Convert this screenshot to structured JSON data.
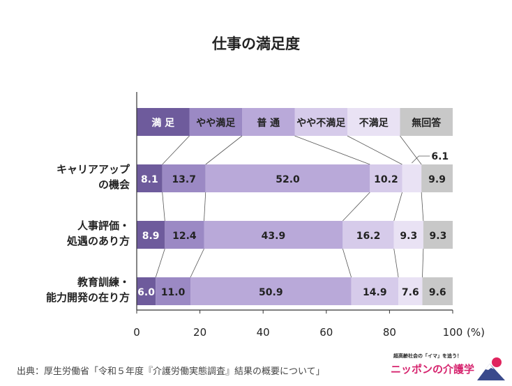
{
  "chart_data": {
    "type": "bar",
    "orientation": "horizontal-stacked-100",
    "title": "仕事の満足度",
    "x_ticks": [
      "0",
      "20",
      "40",
      "60",
      "80",
      "100"
    ],
    "x_unit": "(%)",
    "xlim": [
      0,
      100
    ],
    "legend_labels": [
      "満 足",
      "やや満足",
      "普 通",
      "やや不満足",
      "不満足",
      "無回答"
    ],
    "categories": [
      [
        "キャリアアップ",
        "の機会"
      ],
      [
        "人事評価・",
        "処遇のあり方"
      ],
      [
        "教育訓練・",
        "能力開発の在り方"
      ]
    ],
    "series": [
      {
        "name": "満 足",
        "values": [
          8.1,
          8.9,
          6.0
        ],
        "color": "#6e5b9c",
        "text_color": "#ffffff"
      },
      {
        "name": "やや満足",
        "values": [
          13.7,
          12.4,
          11.0
        ],
        "color": "#9b89c4",
        "text_color": "#222222"
      },
      {
        "name": "普 通",
        "values": [
          52.0,
          43.9,
          50.9
        ],
        "color": "#b9a9d9",
        "text_color": "#222222"
      },
      {
        "name": "やや不満足",
        "values": [
          10.2,
          16.2,
          14.9
        ],
        "color": "#d6cbea",
        "text_color": "#222222"
      },
      {
        "name": "不満足",
        "values": [
          6.1,
          9.3,
          7.6
        ],
        "color": "#e9e2f4",
        "text_color": "#222222"
      },
      {
        "name": "無回答",
        "values": [
          9.9,
          9.3,
          9.6
        ],
        "color": "#c8c8c8",
        "text_color": "#222222"
      }
    ],
    "callout": {
      "row": 0,
      "series": 4,
      "label": "6.1"
    },
    "grid": false
  },
  "source": "出典：厚生労働省「令和５年度『介護労働実態調査』結果の概要について」",
  "logo": {
    "tagline": "超高齢社会の「イマ」を追う！",
    "name": "ニッポンの介護学"
  }
}
